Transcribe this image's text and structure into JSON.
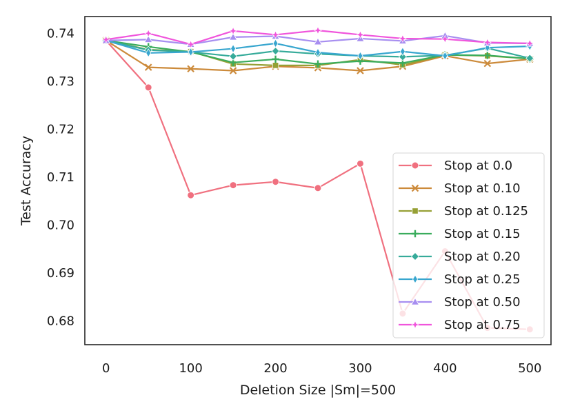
{
  "chart_data": {
    "type": "line",
    "xlabel": "Deletion Size |Sm|=500",
    "ylabel": "Test Accuracy",
    "xlim": [
      -25,
      525
    ],
    "ylim": [
      0.675,
      0.7435
    ],
    "x_ticks": [
      0,
      100,
      200,
      300,
      400,
      500
    ],
    "y_ticks": [
      0.68,
      0.69,
      0.7,
      0.71,
      0.72,
      0.73,
      0.74
    ],
    "y_tick_labels": [
      "0.68",
      "0.69",
      "0.70",
      "0.71",
      "0.72",
      "0.73",
      "0.74"
    ],
    "grid": false,
    "legend_position": "lower-right",
    "x": [
      0,
      50,
      100,
      150,
      200,
      250,
      300,
      350,
      400,
      450,
      500
    ],
    "series": [
      {
        "name": "Stop at 0.0",
        "color": "#f0707f",
        "marker": "circle",
        "values": [
          0.7385,
          0.7287,
          0.7062,
          0.7083,
          0.709,
          0.7077,
          0.7128,
          0.6815,
          0.6945,
          0.6785,
          0.6782
        ]
      },
      {
        "name": "Stop at 0.10",
        "color": "#cc8a3a",
        "marker": "x",
        "values": [
          0.7385,
          0.7329,
          0.7326,
          0.7322,
          0.7331,
          0.7328,
          0.7322,
          0.7331,
          0.7353,
          0.7337,
          0.7346
        ]
      },
      {
        "name": "Stop at 0.125",
        "color": "#96a035",
        "marker": "square",
        "values": [
          0.7385,
          0.7366,
          0.7362,
          0.7336,
          0.7333,
          0.7333,
          0.7345,
          0.7334,
          0.7355,
          0.7353,
          0.7347
        ]
      },
      {
        "name": "Stop at 0.15",
        "color": "#3aac5c",
        "marker": "plus",
        "values": [
          0.7385,
          0.7372,
          0.7361,
          0.7339,
          0.7346,
          0.7336,
          0.7342,
          0.7338,
          0.7355,
          0.7354,
          0.7347
        ]
      },
      {
        "name": "Stop at 0.20",
        "color": "#36ab9a",
        "marker": "diamond",
        "values": [
          0.7385,
          0.7365,
          0.7361,
          0.7352,
          0.7363,
          0.7357,
          0.7353,
          0.7351,
          0.7354,
          0.7369,
          0.7348
        ]
      },
      {
        "name": "Stop at 0.25",
        "color": "#38a6cf",
        "marker": "thin-diamond",
        "values": [
          0.7385,
          0.7359,
          0.7361,
          0.7368,
          0.7379,
          0.736,
          0.7353,
          0.7362,
          0.7353,
          0.737,
          0.7373
        ]
      },
      {
        "name": "Stop at 0.50",
        "color": "#a78ef0",
        "marker": "triangle",
        "values": [
          0.7385,
          0.7387,
          0.7377,
          0.7392,
          0.7394,
          0.7382,
          0.7389,
          0.7384,
          0.7395,
          0.738,
          0.7379
        ]
      },
      {
        "name": "Stop at 0.75",
        "color": "#f055dc",
        "marker": "star",
        "values": [
          0.7387,
          0.74,
          0.7377,
          0.7405,
          0.7397,
          0.7406,
          0.7397,
          0.7389,
          0.7388,
          0.7381,
          0.7379
        ]
      }
    ]
  }
}
